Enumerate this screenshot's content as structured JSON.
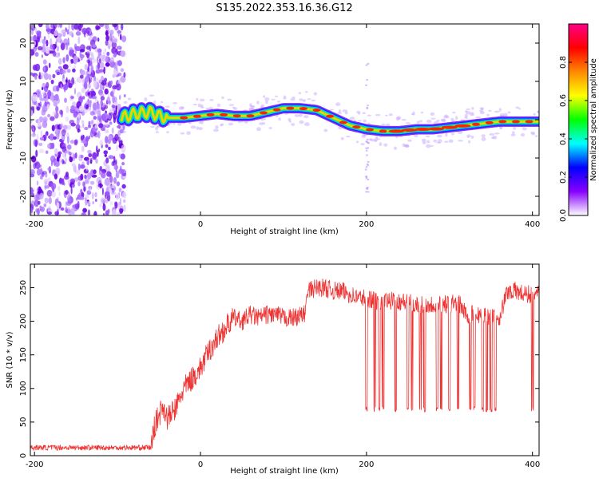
{
  "figure_title": "S135.2022.353.16.36.G12",
  "chart_data": [
    {
      "type": "heatmap",
      "title": "S135.2022.353.16.36.G12",
      "xlabel": "Height of straight line (km)",
      "ylabel": "Frequency (Hz)",
      "xlim": [
        -205,
        408
      ],
      "ylim": [
        -25,
        25
      ],
      "xticks": [
        -200,
        0,
        200,
        400
      ],
      "yticks": [
        -20,
        -10,
        0,
        10,
        20
      ],
      "grid": false,
      "colorbar": {
        "label": "Normalized spectral amplitude",
        "ticks": [
          0.0,
          0.2,
          0.4,
          0.6,
          0.8
        ],
        "range": [
          0,
          1
        ],
        "colors": [
          "#ffffff",
          "#8800ff",
          "#0000ff",
          "#00ffff",
          "#00ff00",
          "#ffff00",
          "#ff8800",
          "#ff0000",
          "#ff0088"
        ]
      },
      "noise_region_x": [
        -205,
        -95
      ],
      "ridge": {
        "x": [
          -95,
          -80,
          -60,
          -50,
          -40,
          -20,
          0,
          20,
          40,
          60,
          80,
          100,
          120,
          140,
          160,
          180,
          200,
          220,
          240,
          260,
          280,
          300,
          320,
          340,
          360,
          380,
          408
        ],
        "y": [
          0.5,
          1.5,
          2.0,
          1.0,
          0.5,
          0.5,
          1.0,
          1.5,
          1.0,
          1.0,
          2.0,
          3.0,
          3.0,
          2.5,
          0.5,
          -1.5,
          -2.5,
          -3.0,
          -3.0,
          -2.5,
          -2.5,
          -2.0,
          -1.5,
          -1.0,
          -0.5,
          -0.5,
          -0.5
        ]
      }
    },
    {
      "type": "line",
      "xlabel": "Height of straight line (km)",
      "ylabel": "SNR (10 * v/v)",
      "xlim": [
        -205,
        408
      ],
      "ylim": [
        0,
        285
      ],
      "xticks": [
        -200,
        0,
        200,
        400
      ],
      "yticks": [
        0,
        50,
        100,
        150,
        200,
        250
      ],
      "grid": false,
      "color": "#ee3333",
      "series": [
        {
          "x": [
            -205,
            -150,
            -100,
            -60,
            -55,
            -45,
            -40,
            -30,
            -20,
            -10,
            0,
            10,
            20,
            30,
            40,
            50,
            60,
            70,
            80,
            90,
            100,
            110,
            125,
            130,
            140,
            150,
            160,
            170,
            180,
            190,
            200,
            210,
            220,
            240,
            260,
            280,
            300,
            310,
            320,
            330,
            340,
            350,
            360,
            370,
            380,
            390,
            408
          ],
          "y": [
            12,
            12,
            12,
            12,
            45,
            75,
            55,
            70,
            100,
            115,
            130,
            155,
            175,
            190,
            205,
            200,
            210,
            205,
            210,
            210,
            205,
            205,
            210,
            245,
            250,
            250,
            245,
            245,
            240,
            235,
            235,
            230,
            230,
            230,
            225,
            225,
            225,
            230,
            210,
            210,
            210,
            205,
            205,
            245,
            245,
            240,
            240
          ]
        }
      ],
      "dropouts_x": [
        200,
        210,
        215,
        220,
        235,
        250,
        255,
        265,
        270,
        285,
        290,
        300,
        310,
        325,
        330,
        340,
        345,
        350,
        355,
        400
      ],
      "dropout_floor": 65
    }
  ]
}
